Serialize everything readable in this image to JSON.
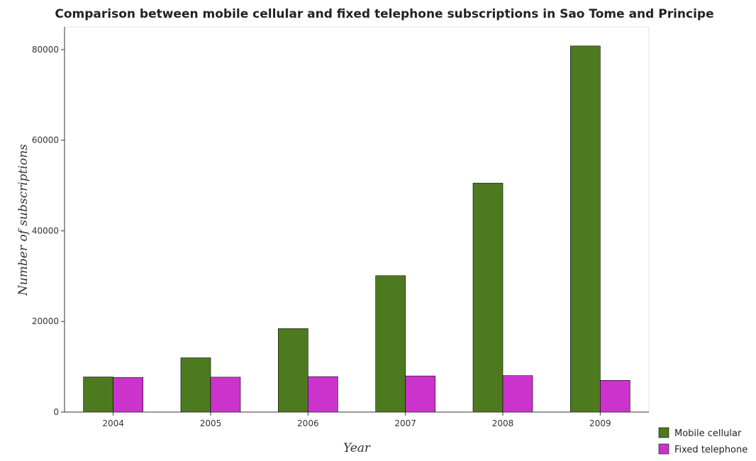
{
  "chart_data": {
    "type": "bar",
    "title": "Comparison between mobile cellular and fixed telephone subscriptions in Sao Tome and Principe",
    "xlabel": "Year",
    "ylabel": "Number of subscriptions",
    "categories": [
      "2004",
      "2005",
      "2006",
      "2007",
      "2008",
      "2009"
    ],
    "series": [
      {
        "name": "Mobile cellular",
        "color": "#4d7a1e",
        "values": [
          7745,
          11974,
          18418,
          30097,
          50535,
          80800
        ]
      },
      {
        "name": "Fixed telephone",
        "color": "#cc33cc",
        "values": [
          7646,
          7703,
          7818,
          7968,
          8042,
          7000
        ]
      }
    ],
    "ylim": [
      0,
      85000
    ],
    "yticks": [
      0,
      20000,
      40000,
      60000,
      80000
    ],
    "ytick_labels": [
      "0",
      "20000",
      "40000",
      "60000",
      "80000"
    ],
    "grid": false,
    "legend_position": "bottom-right"
  }
}
